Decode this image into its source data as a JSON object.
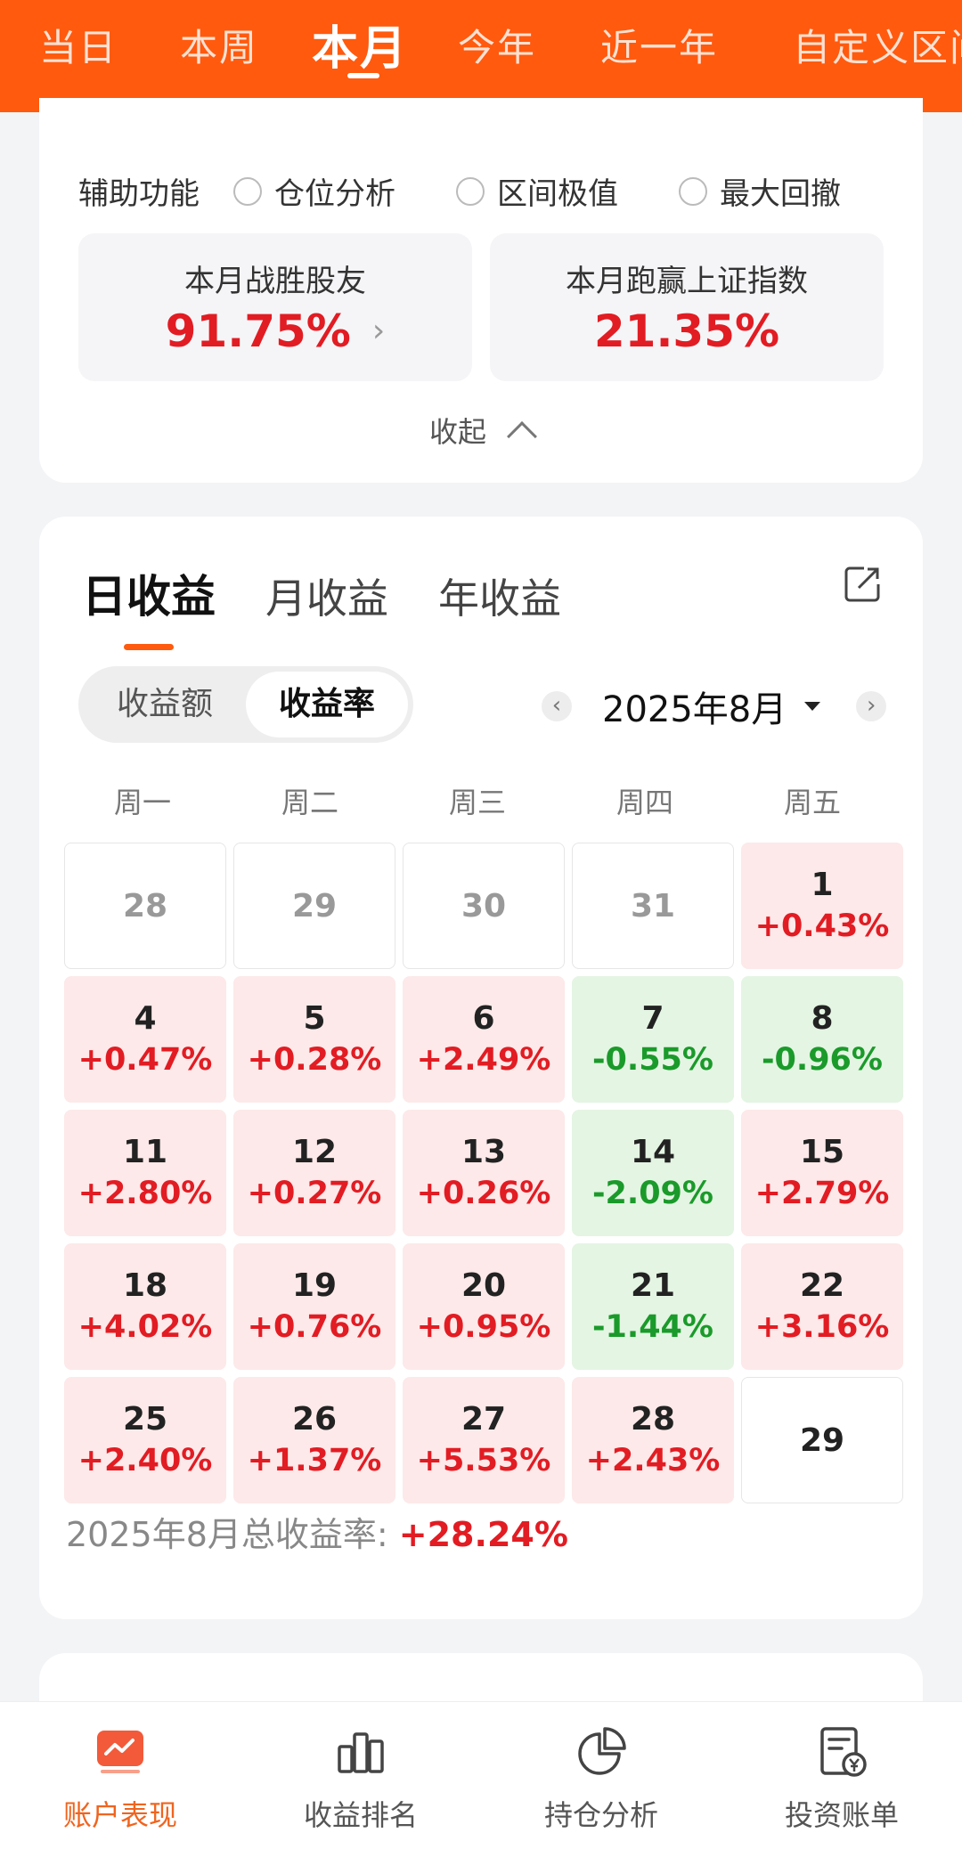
{
  "top_tabs": [
    {
      "label": "当日"
    },
    {
      "label": "本周"
    },
    {
      "label": "本月"
    },
    {
      "label": "今年"
    },
    {
      "label": "近一年"
    },
    {
      "label": "自定义区间"
    }
  ],
  "aux": {
    "label": "辅助功能",
    "options": [
      {
        "label": "仓位分析"
      },
      {
        "label": "区间极值"
      },
      {
        "label": "最大回撤"
      }
    ]
  },
  "stats": {
    "beat_friends_title": "本月战胜股友",
    "beat_friends_value": "91.75%",
    "beat_index_title": "本月跑赢上证指数",
    "beat_index_value": "21.35%"
  },
  "collapse_label": "收起",
  "profit_tabs": [
    {
      "label": "日收益"
    },
    {
      "label": "月收益"
    },
    {
      "label": "年收益"
    }
  ],
  "segment": {
    "amount_label": "收益额",
    "rate_label": "收益率"
  },
  "month_nav": {
    "prev": "‹",
    "label": "2025年8月",
    "next": "›"
  },
  "weekdays": [
    "周一",
    "周二",
    "周三",
    "周四",
    "周五"
  ],
  "calendar": [
    {
      "day": "28",
      "pct": "",
      "type": "muted"
    },
    {
      "day": "29",
      "pct": "",
      "type": "muted"
    },
    {
      "day": "30",
      "pct": "",
      "type": "muted"
    },
    {
      "day": "31",
      "pct": "",
      "type": "muted"
    },
    {
      "day": "1",
      "pct": "+0.43%",
      "type": "up"
    },
    {
      "day": "4",
      "pct": "+0.47%",
      "type": "up"
    },
    {
      "day": "5",
      "pct": "+0.28%",
      "type": "up"
    },
    {
      "day": "6",
      "pct": "+2.49%",
      "type": "up"
    },
    {
      "day": "7",
      "pct": "-0.55%",
      "type": "down"
    },
    {
      "day": "8",
      "pct": "-0.96%",
      "type": "down"
    },
    {
      "day": "11",
      "pct": "+2.80%",
      "type": "up"
    },
    {
      "day": "12",
      "pct": "+0.27%",
      "type": "up"
    },
    {
      "day": "13",
      "pct": "+0.26%",
      "type": "up"
    },
    {
      "day": "14",
      "pct": "-2.09%",
      "type": "down"
    },
    {
      "day": "15",
      "pct": "+2.79%",
      "type": "up"
    },
    {
      "day": "18",
      "pct": "+4.02%",
      "type": "up"
    },
    {
      "day": "19",
      "pct": "+0.76%",
      "type": "up"
    },
    {
      "day": "20",
      "pct": "+0.95%",
      "type": "up"
    },
    {
      "day": "21",
      "pct": "-1.44%",
      "type": "down"
    },
    {
      "day": "22",
      "pct": "+3.16%",
      "type": "up"
    },
    {
      "day": "25",
      "pct": "+2.40%",
      "type": "up"
    },
    {
      "day": "26",
      "pct": "+1.37%",
      "type": "up"
    },
    {
      "day": "27",
      "pct": "+5.53%",
      "type": "up"
    },
    {
      "day": "28",
      "pct": "+2.43%",
      "type": "up"
    },
    {
      "day": "29",
      "pct": "",
      "type": "empty"
    }
  ],
  "total": {
    "label": "2025年8月总收益率: ",
    "value": "+28.24%"
  },
  "next_section_title": "",
  "bottom_nav": [
    {
      "label": "账户表现",
      "icon": "trend-chart-icon"
    },
    {
      "label": "收益排名",
      "icon": "bar-chart-icon"
    },
    {
      "label": "持仓分析",
      "icon": "pie-chart-icon"
    },
    {
      "label": "投资账单",
      "icon": "bill-icon"
    }
  ],
  "colors": {
    "brand_orange": "#ff5a0e",
    "up_red": "#e21c23",
    "down_green": "#1a9a2a",
    "up_bg": "#fde9e9",
    "down_bg": "#e4f5e3"
  }
}
